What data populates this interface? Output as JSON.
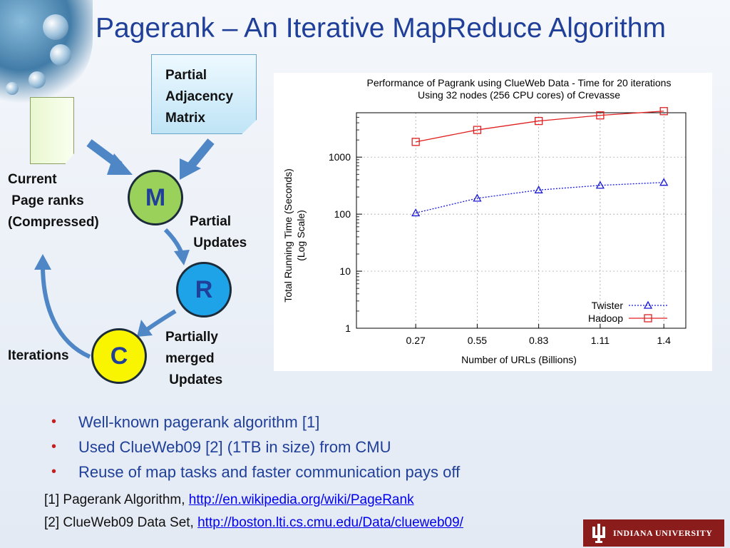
{
  "slide": {
    "title": "Pagerank – An Iterative MapReduce Algorithm"
  },
  "diagram": {
    "note_label": "Partial\nAdjacency\nMatrix",
    "current_label": "Current\n Page ranks\n(Compressed)",
    "m_label": "M",
    "r_label": "R",
    "c_label": "C",
    "partial_updates_label": "Partial\n Updates",
    "partially_merged_label": "Partially\nmerged\n Updates",
    "iterations_label": "Iterations"
  },
  "chart_data": {
    "type": "line",
    "title": "Performance of Pagrank using ClueWeb Data - Time for 20 iterations",
    "subtitle": "Using 32 nodes (256 CPU cores) of Crevasse",
    "xlabel": "Number of URLs (Billions)",
    "ylabel": "Total Running Time (Seconds)",
    "ylabel2": "(Log Scale)",
    "x": [
      0.27,
      0.55,
      0.83,
      1.11,
      1.4
    ],
    "x_tick_labels": [
      "0.27",
      "0.55",
      "0.83",
      "1.11",
      "1.4"
    ],
    "xlim": [
      0,
      1.5
    ],
    "y_scale": "log",
    "ylim": [
      1,
      6000
    ],
    "y_ticks": [
      1,
      10,
      100,
      1000
    ],
    "y_tick_labels": [
      "1",
      "10",
      "100",
      "1000"
    ],
    "grid": true,
    "legend_position": "bottom-right",
    "series": [
      {
        "name": "Twister",
        "values": [
          105,
          190,
          265,
          320,
          360
        ],
        "color": "#1a1ad6",
        "style": "dotted",
        "marker": "triangle"
      },
      {
        "name": "Hadoop",
        "values": [
          1850,
          3000,
          4300,
          5400,
          6400
        ],
        "color": "#e02020",
        "style": "solid",
        "marker": "square"
      }
    ]
  },
  "bullets": [
    "Well-known pagerank algorithm [1]",
    "Used ClueWeb09 [2] (1TB in size) from CMU",
    "Reuse of map tasks and faster communication pays off"
  ],
  "references": [
    {
      "prefix": "[1] Pagerank Algorithm, ",
      "link": "http://en.wikipedia.org/wiki/PageRank"
    },
    {
      "prefix": "[2] ClueWeb09 Data Set, ",
      "link": "http://boston.lti.cs.cmu.edu/Data/clueweb09/"
    }
  ],
  "logo": {
    "text": "INDIANA UNIVERSITY",
    "color": "#8a1c1c"
  }
}
